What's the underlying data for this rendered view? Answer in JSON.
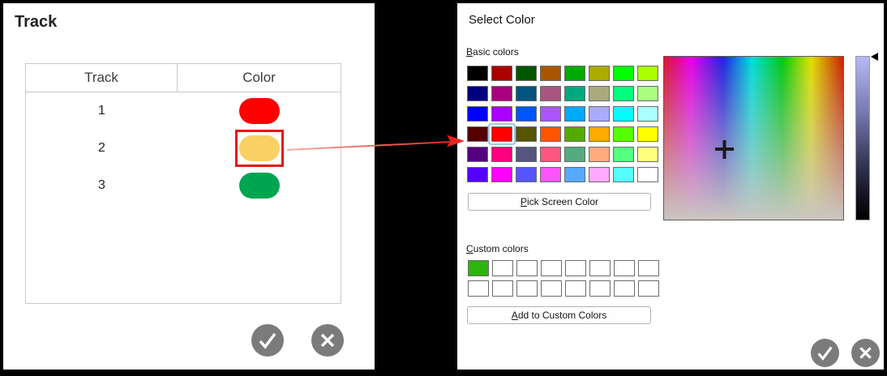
{
  "left_panel": {
    "title": "Track",
    "table": {
      "columns": [
        "Track",
        "Color"
      ],
      "rows": [
        {
          "track": "1",
          "color": "#fe0000",
          "color_name": "red",
          "highlighted": false
        },
        {
          "track": "2",
          "color": "#f8d064",
          "color_name": "yellow",
          "highlighted": true
        },
        {
          "track": "3",
          "color": "#00a551",
          "color_name": "green",
          "highlighted": false
        }
      ],
      "highlight_border_color": "#e8140c"
    }
  },
  "dialog": {
    "title": "Select Color",
    "basic_colors_label": {
      "text": "Basic colors",
      "mnemonic": "B"
    },
    "basic_colors": [
      "#000000",
      "#aa0000",
      "#005500",
      "#aa5500",
      "#00aa00",
      "#aaaa00",
      "#00ff00",
      "#aaff00",
      "#00007f",
      "#aa007f",
      "#00557f",
      "#aa557f",
      "#00aa7f",
      "#aaaa7f",
      "#00ff7f",
      "#aaff7f",
      "#0000ff",
      "#aa00ff",
      "#0055ff",
      "#aa55ff",
      "#00aaff",
      "#aaaaff",
      "#00ffff",
      "#aaffff",
      "#550000",
      "#ff0000",
      "#555500",
      "#ff5500",
      "#55aa00",
      "#ffaa00",
      "#55ff00",
      "#ffff00",
      "#55007f",
      "#ff007f",
      "#55557f",
      "#ff557f",
      "#55aa7f",
      "#ffaa7f",
      "#55ff7f",
      "#ffff7f",
      "#5500ff",
      "#ff00ff",
      "#5555ff",
      "#ff55ff",
      "#55aaff",
      "#ffaaff",
      "#55ffff",
      "#ffffff"
    ],
    "selected_basic_index": 25,
    "selected_basic_color": "#ff0000",
    "pick_screen_color": {
      "text": "Pick Screen Color",
      "mnemonic": "P"
    },
    "custom_colors_label": {
      "text": "Custom colors",
      "mnemonic": "C"
    },
    "custom_colors": [
      "#2eb40f",
      "#ffffff",
      "#ffffff",
      "#ffffff",
      "#ffffff",
      "#ffffff",
      "#ffffff",
      "#ffffff",
      "#ffffff",
      "#ffffff",
      "#ffffff",
      "#ffffff",
      "#ffffff",
      "#ffffff",
      "#ffffff",
      "#ffffff"
    ],
    "add_to_custom": {
      "text": "Add to Custom Colors",
      "mnemonic": "A"
    },
    "slider_top_color": "#b6b9f4"
  },
  "annotation": {
    "arrow_color_start": "#f5b0ac",
    "arrow_color_end": "#e8251f"
  },
  "buttons": {
    "confirm_color": "#7b7b7b",
    "cancel_color": "#7b7b7b"
  }
}
